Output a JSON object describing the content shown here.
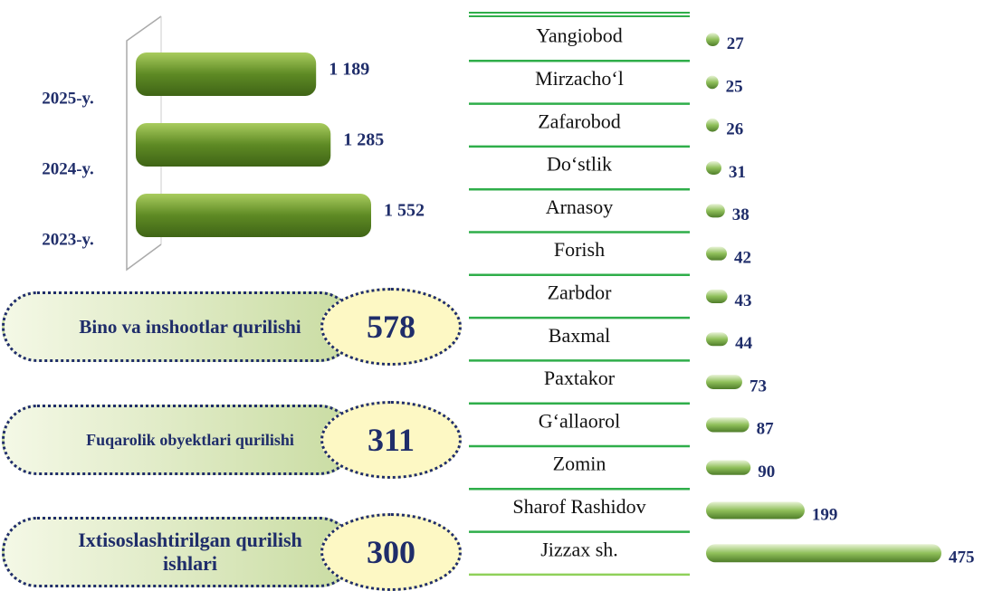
{
  "chart_data": [
    {
      "type": "hbar",
      "categories": [
        "2025-y.",
        "2024-y.",
        "2023-y."
      ],
      "values": [
        1189,
        1285,
        1552
      ],
      "value_labels": [
        "1 189",
        "1 285",
        "1 552"
      ],
      "color": "#6f9a2e"
    },
    {
      "type": "hbar",
      "categories": [
        "Yangiobod",
        "Mirzacho‘l",
        "Zafarobod",
        "Do‘stlik",
        "Arnasoy",
        "Forish",
        "Zarbdor",
        "Baxmal",
        "Paxtakor",
        "G‘allaorol",
        "Zomin",
        "Sharof Rashidov",
        "Jizzax sh."
      ],
      "values": [
        27,
        25,
        26,
        31,
        38,
        42,
        43,
        44,
        73,
        87,
        90,
        199,
        475
      ],
      "color": "#8fbf5a"
    }
  ],
  "summary": {
    "items": [
      {
        "label": "Bino va inshootlar qurilishi",
        "value": "578"
      },
      {
        "label": "Fuqarolik obyektlari qurilishi",
        "value": "311"
      },
      {
        "label": "Ixtisoslashtirilgan qurilish ishlari",
        "value": "300"
      }
    ]
  }
}
